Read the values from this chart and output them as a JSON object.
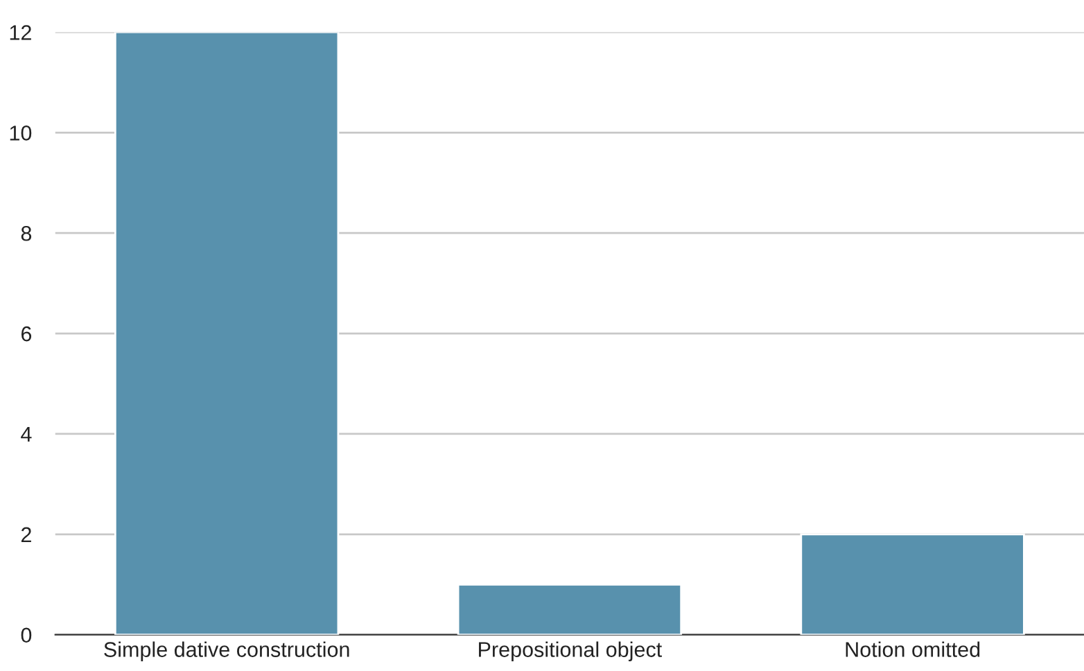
{
  "chart_data": {
    "type": "bar",
    "categories": [
      "Simple dative construction",
      "Prepositional object",
      "Notion omitted"
    ],
    "values": [
      12,
      1,
      2
    ],
    "color": "#5891ad",
    "ylim": [
      0,
      12
    ],
    "yticks": [
      0,
      2,
      4,
      6,
      8,
      10,
      12
    ],
    "grid": "y"
  }
}
